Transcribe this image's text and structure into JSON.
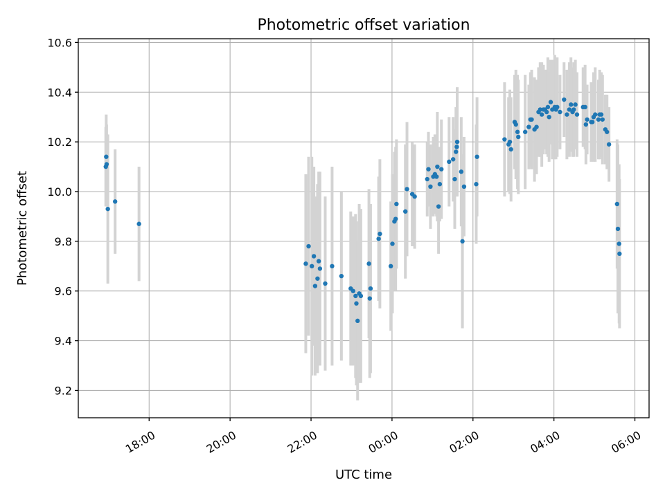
{
  "chart_data": {
    "type": "scatter",
    "title": "Photometric offset variation",
    "xlabel": "UTC time",
    "ylabel": "Photometric offset",
    "grid": true,
    "x_unit": "hours since 16:00 UTC",
    "xlim": [
      0.25,
      14.35
    ],
    "ylim": [
      9.09,
      10.615
    ],
    "x_ticks": [
      {
        "value": 2,
        "label": "18:00"
      },
      {
        "value": 4,
        "label": "20:00"
      },
      {
        "value": 6,
        "label": "22:00"
      },
      {
        "value": 8,
        "label": "00:00"
      },
      {
        "value": 10,
        "label": "02:00"
      },
      {
        "value": 12,
        "label": "04:00"
      },
      {
        "value": 14,
        "label": "06:00"
      }
    ],
    "y_ticks": [
      {
        "value": 9.2,
        "label": "9.2"
      },
      {
        "value": 9.4,
        "label": "9.4"
      },
      {
        "value": 9.6,
        "label": "9.6"
      },
      {
        "value": 9.8,
        "label": "9.8"
      },
      {
        "value": 10.0,
        "label": "10.0"
      },
      {
        "value": 10.2,
        "label": "10.2"
      },
      {
        "value": 10.4,
        "label": "10.4"
      },
      {
        "value": 10.6,
        "label": "10.6"
      }
    ],
    "marker_color": "#1f77b4",
    "errorbar_color": "#d3d3d3",
    "points": [
      [
        0.93,
        10.1,
        0.16
      ],
      [
        0.94,
        10.14,
        0.17
      ],
      [
        0.95,
        10.11,
        0.16
      ],
      [
        0.98,
        9.93,
        0.3
      ],
      [
        1.16,
        9.96,
        0.21
      ],
      [
        1.75,
        9.87,
        0.23
      ],
      [
        5.87,
        9.71,
        0.36
      ],
      [
        5.94,
        9.78,
        0.36
      ],
      [
        6.02,
        9.7,
        0.44
      ],
      [
        6.07,
        9.74,
        0.36
      ],
      [
        6.1,
        9.62,
        0.36
      ],
      [
        6.16,
        9.65,
        0.38
      ],
      [
        6.19,
        9.72,
        0.36
      ],
      [
        6.22,
        9.69,
        0.39
      ],
      [
        6.35,
        9.63,
        0.35
      ],
      [
        6.52,
        9.7,
        0.4
      ],
      [
        6.75,
        9.66,
        0.34
      ],
      [
        6.98,
        9.61,
        0.31
      ],
      [
        7.04,
        9.6,
        0.3
      ],
      [
        7.1,
        9.58,
        0.33
      ],
      [
        7.12,
        9.55,
        0.33
      ],
      [
        7.15,
        9.48,
        0.32
      ],
      [
        7.19,
        9.59,
        0.36
      ],
      [
        7.23,
        9.58,
        0.35
      ],
      [
        7.43,
        9.71,
        0.3
      ],
      [
        7.45,
        9.57,
        0.32
      ],
      [
        7.47,
        9.61,
        0.34
      ],
      [
        7.67,
        9.81,
        0.25
      ],
      [
        7.7,
        9.83,
        0.3
      ],
      [
        7.97,
        9.7,
        0.26
      ],
      [
        8.01,
        9.79,
        0.28
      ],
      [
        8.06,
        9.88,
        0.28
      ],
      [
        8.09,
        9.89,
        0.29
      ],
      [
        8.11,
        9.95,
        0.26
      ],
      [
        8.33,
        9.92,
        0.27
      ],
      [
        8.37,
        10.01,
        0.27
      ],
      [
        8.5,
        9.99,
        0.21
      ],
      [
        8.56,
        9.98,
        0.21
      ],
      [
        8.87,
        10.05,
        0.15
      ],
      [
        8.9,
        10.09,
        0.15
      ],
      [
        8.95,
        10.02,
        0.17
      ],
      [
        9.02,
        10.06,
        0.16
      ],
      [
        9.06,
        10.07,
        0.16
      ],
      [
        9.1,
        10.06,
        0.16
      ],
      [
        9.12,
        10.1,
        0.22
      ],
      [
        9.15,
        9.94,
        0.19
      ],
      [
        9.18,
        10.03,
        0.15
      ],
      [
        9.22,
        10.09,
        0.2
      ],
      [
        9.41,
        10.12,
        0.18
      ],
      [
        9.51,
        10.13,
        0.17
      ],
      [
        9.55,
        10.05,
        0.2
      ],
      [
        9.58,
        10.16,
        0.18
      ],
      [
        9.6,
        10.18,
        0.14
      ],
      [
        9.61,
        10.2,
        0.22
      ],
      [
        9.71,
        10.08,
        0.22
      ],
      [
        9.74,
        9.8,
        0.35
      ],
      [
        9.78,
        10.02,
        0.2
      ],
      [
        10.08,
        10.03,
        0.24
      ],
      [
        10.1,
        10.14,
        0.24
      ],
      [
        10.78,
        10.21,
        0.23
      ],
      [
        10.88,
        10.19,
        0.19
      ],
      [
        10.91,
        10.2,
        0.21
      ],
      [
        10.94,
        10.17,
        0.21
      ],
      [
        11.03,
        10.28,
        0.19
      ],
      [
        11.06,
        10.27,
        0.22
      ],
      [
        11.1,
        10.24,
        0.23
      ],
      [
        11.12,
        10.22,
        0.23
      ],
      [
        11.29,
        10.24,
        0.23
      ],
      [
        11.38,
        10.26,
        0.17
      ],
      [
        11.42,
        10.29,
        0.19
      ],
      [
        11.45,
        10.29,
        0.2
      ],
      [
        11.52,
        10.25,
        0.21
      ],
      [
        11.57,
        10.26,
        0.19
      ],
      [
        11.62,
        10.32,
        0.18
      ],
      [
        11.66,
        10.33,
        0.19
      ],
      [
        11.7,
        10.31,
        0.21
      ],
      [
        11.74,
        10.33,
        0.18
      ],
      [
        11.78,
        10.33,
        0.16
      ],
      [
        11.82,
        10.32,
        0.17
      ],
      [
        11.85,
        10.34,
        0.2
      ],
      [
        11.88,
        10.3,
        0.18
      ],
      [
        11.92,
        10.36,
        0.17
      ],
      [
        11.96,
        10.33,
        0.2
      ],
      [
        12.02,
        10.34,
        0.21
      ],
      [
        12.05,
        10.33,
        0.2
      ],
      [
        12.08,
        10.34,
        0.2
      ],
      [
        12.15,
        10.32,
        0.15
      ],
      [
        12.25,
        10.37,
        0.15
      ],
      [
        12.32,
        10.31,
        0.18
      ],
      [
        12.38,
        10.33,
        0.19
      ],
      [
        12.42,
        10.35,
        0.19
      ],
      [
        12.46,
        10.32,
        0.18
      ],
      [
        12.49,
        10.33,
        0.19
      ],
      [
        12.53,
        10.35,
        0.18
      ],
      [
        12.57,
        10.31,
        0.17
      ],
      [
        12.72,
        10.34,
        0.16
      ],
      [
        12.77,
        10.34,
        0.17
      ],
      [
        12.79,
        10.27,
        0.16
      ],
      [
        12.82,
        10.29,
        0.14
      ],
      [
        12.92,
        10.28,
        0.16
      ],
      [
        12.95,
        10.28,
        0.14
      ],
      [
        12.98,
        10.3,
        0.18
      ],
      [
        13.02,
        10.31,
        0.19
      ],
      [
        13.1,
        10.29,
        0.16
      ],
      [
        13.13,
        10.31,
        0.18
      ],
      [
        13.17,
        10.31,
        0.17
      ],
      [
        13.2,
        10.29,
        0.18
      ],
      [
        13.27,
        10.25,
        0.14
      ],
      [
        13.31,
        10.24,
        0.15
      ],
      [
        13.36,
        10.19,
        0.15
      ],
      [
        13.56,
        9.95,
        0.26
      ],
      [
        13.58,
        9.85,
        0.34
      ],
      [
        13.61,
        9.79,
        0.32
      ],
      [
        13.62,
        9.75,
        0.3
      ]
    ]
  }
}
